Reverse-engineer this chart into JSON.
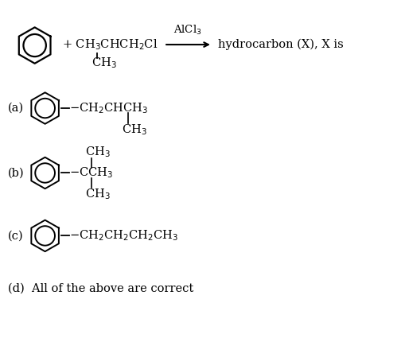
{
  "bg_color": "#ffffff",
  "text_color": "#000000",
  "figsize": [
    5.04,
    4.3
  ],
  "dpi": 100,
  "reaction_eq": "+ CH$_3$CHCH$_2$Cl",
  "catalyst": "AlCl$_3$",
  "product": "hydrocarbon (X), X is",
  "ch3_sub_top": "CH$_3$",
  "option_a_label": "(a)",
  "option_a_formula": "$-$CH$_2$CHCH$_3$",
  "option_a_sub": "CH$_3$",
  "option_b_label": "(b)",
  "option_b_formula": "$-$CCH$_3$",
  "option_b_top": "CH$_3$",
  "option_b_bot": "CH$_3$",
  "option_c_label": "(c)",
  "option_c_formula": "$-$CH$_2$CH$_2$CH$_2$CH$_3$",
  "option_d": "(d)  All of the above are correct"
}
